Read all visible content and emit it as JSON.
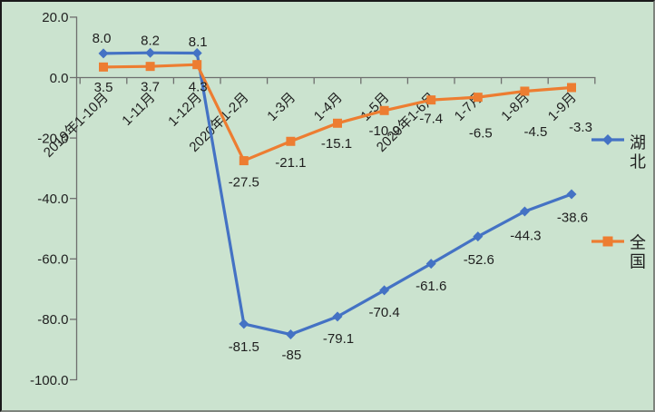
{
  "chart_data": {
    "type": "line",
    "title": "",
    "categories": [
      "2019年1-10月",
      "1-11月",
      "1-12月",
      "2020年1-2月",
      "1-3月",
      "1-4月",
      "1-5月",
      "2020年1-6月",
      "1-7月",
      "1-8月",
      "1-9月"
    ],
    "series": [
      {
        "name": "湖北",
        "color": "#4472C4",
        "marker": "diamond",
        "values": [
          8.0,
          8.2,
          8.1,
          -81.5,
          -85,
          -79.1,
          -70.4,
          -61.6,
          -52.6,
          -44.3,
          -38.6
        ],
        "point_labels": [
          "8.0",
          "8.2",
          "8.1",
          "-81.5",
          "-85",
          "-79.1",
          "-70.4",
          "-61.6",
          "-52.6",
          "-44.3",
          "-38.6"
        ]
      },
      {
        "name": "全国",
        "color": "#ED7D31",
        "marker": "square",
        "values": [
          3.5,
          3.7,
          4.3,
          -27.5,
          -21.1,
          -15.1,
          -10.9,
          -7.4,
          -6.5,
          -4.5,
          -3.3
        ],
        "point_labels": [
          "3.5",
          "3.7",
          "4.3",
          "-27.5",
          "-21.1",
          "-15.1",
          "-10.9",
          "-7.4",
          "-6.5",
          "-4.5",
          "-3.3"
        ]
      }
    ],
    "y_axis": {
      "min": -100,
      "max": 20,
      "tick_step": 20,
      "tick_values": [
        20,
        0,
        -20,
        -40,
        -60,
        -80,
        -100
      ],
      "tick_labels": [
        "20.0",
        "0.0",
        "-20.0",
        "-40.0",
        "-60.0",
        "-80.0",
        "-100.0"
      ]
    },
    "x_axis": {
      "label_rotation_deg": -45
    },
    "legend": {
      "position": "right",
      "entries": [
        "湖北",
        "全国"
      ]
    },
    "grid": false,
    "colors": {
      "background": "#CBE3CF",
      "axis": "#6E6E6E",
      "text": "#1F1F1F"
    }
  }
}
